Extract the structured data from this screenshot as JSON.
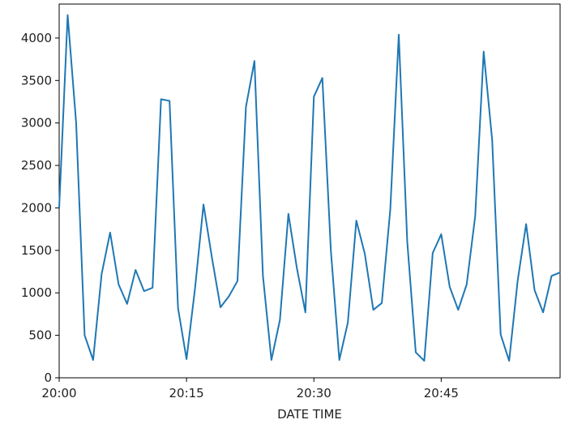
{
  "chart_data": {
    "type": "line",
    "title": "",
    "xlabel": "DATE TIME",
    "ylabel": "",
    "xlim": [
      "20:00",
      "20:59"
    ],
    "ylim": [
      0,
      4400
    ],
    "grid": false,
    "legend": "none",
    "x_ticks": [
      "20:00",
      "20:15",
      "20:30",
      "20:45"
    ],
    "y_ticks": [
      0,
      500,
      1000,
      1500,
      2000,
      2500,
      3000,
      3500,
      4000
    ],
    "x": [
      "20:00",
      "20:01",
      "20:02",
      "20:03",
      "20:04",
      "20:05",
      "20:06",
      "20:07",
      "20:08",
      "20:09",
      "20:10",
      "20:11",
      "20:12",
      "20:13",
      "20:14",
      "20:15",
      "20:16",
      "20:17",
      "20:18",
      "20:19",
      "20:20",
      "20:21",
      "20:22",
      "20:23",
      "20:24",
      "20:25",
      "20:26",
      "20:27",
      "20:28",
      "20:29",
      "20:30",
      "20:31",
      "20:32",
      "20:33",
      "20:34",
      "20:35",
      "20:36",
      "20:37",
      "20:38",
      "20:39",
      "20:40",
      "20:41",
      "20:42",
      "20:43",
      "20:44",
      "20:45",
      "20:46",
      "20:47",
      "20:48",
      "20:49",
      "20:50",
      "20:51",
      "20:52",
      "20:53",
      "20:54",
      "20:55",
      "20:56",
      "20:57",
      "20:58",
      "20:59"
    ],
    "series": [
      {
        "color": "#1f77b4",
        "values": [
          2000,
          4270,
          3000,
          500,
          210,
          1220,
          1710,
          1100,
          870,
          1270,
          1020,
          1060,
          3280,
          3260,
          820,
          220,
          1050,
          2040,
          1410,
          830,
          960,
          1140,
          3190,
          3730,
          1200,
          210,
          680,
          1930,
          1290,
          770,
          3310,
          3530,
          1500,
          210,
          650,
          1850,
          1460,
          800,
          880,
          1980,
          4040,
          1600,
          300,
          200,
          1470,
          1690,
          1070,
          800,
          1100,
          1900,
          3840,
          2800,
          510,
          200,
          1140,
          1810,
          1030,
          770,
          1200,
          1240
        ]
      }
    ]
  }
}
